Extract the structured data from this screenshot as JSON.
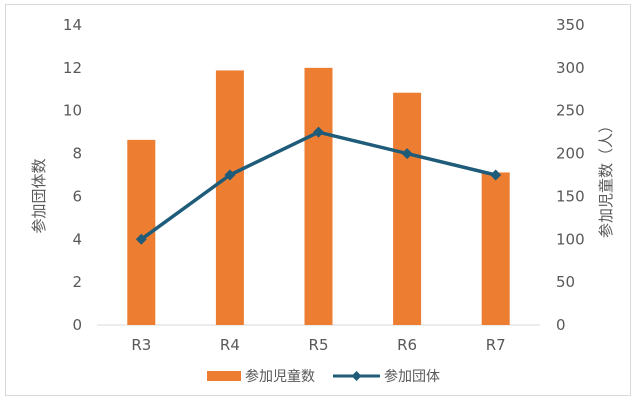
{
  "chart_data": {
    "type": "bar",
    "title": "",
    "categories": [
      "R3",
      "R4",
      "R5",
      "R6",
      "R7"
    ],
    "series": [
      {
        "name": "参加児童数",
        "type": "bar",
        "axis": "right",
        "color": "#ED7D31",
        "values": [
          216,
          297,
          300,
          271,
          178
        ]
      },
      {
        "name": "参加団体",
        "type": "line",
        "axis": "left",
        "color": "#1F5C7A",
        "marker": "diamond",
        "values": [
          4,
          7,
          9,
          8,
          7
        ]
      }
    ],
    "y_left": {
      "label": "参加団体数",
      "min": 0,
      "max": 14,
      "ticks": [
        "0",
        "2",
        "4",
        "6",
        "8",
        "10",
        "12",
        "14"
      ]
    },
    "y_right": {
      "label": "参加児童数（人）",
      "min": 0,
      "max": 350,
      "ticks": [
        "0",
        "50",
        "100",
        "150",
        "200",
        "250",
        "300",
        "350"
      ]
    },
    "grid": false,
    "legend_position": "bottom"
  }
}
